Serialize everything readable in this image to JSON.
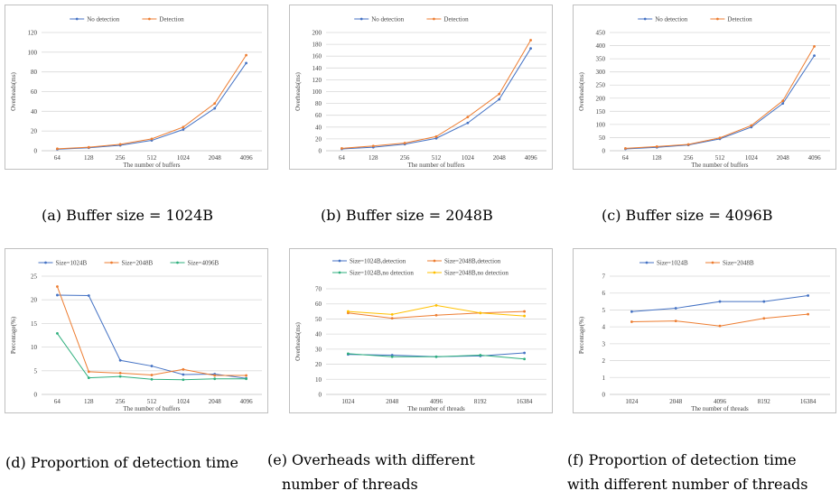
{
  "colors": {
    "blue": "#4472c4",
    "orange": "#ed7d31",
    "green": "#2eaf7d",
    "yellow": "#ffc000",
    "grid": "#d9d9d9",
    "axis": "#bfbfbf",
    "text": "#404040"
  },
  "captions": {
    "a": "(a)  Buffer size = 1024B",
    "b": "(b)  Buffer size = 2048B",
    "c": "(c)  Buffer size = 4096B",
    "d": "(d)  Proportion of detection time",
    "e_1": "(e)     Overheads   with   different",
    "e_2": "number of threads",
    "f_1": "(f)  Proportion of detection time",
    "f_2": "with different number of threads"
  },
  "chart_data": [
    {
      "id": "a",
      "type": "line",
      "title": "",
      "xlabel": "The number of buffers",
      "ylabel": "Overheads(ms)",
      "categories": [
        "64",
        "128",
        "256",
        "512",
        "1024",
        "2048",
        "4096"
      ],
      "ylim": [
        0,
        120
      ],
      "yticks": [
        0,
        20,
        40,
        60,
        80,
        100,
        120
      ],
      "grid": true,
      "legend": "top",
      "series": [
        {
          "name": "No detection",
          "color": "blue",
          "values": [
            1.5,
            3,
            5.5,
            10.5,
            21.5,
            43,
            89
          ]
        },
        {
          "name": "Detection",
          "color": "orange",
          "values": [
            2,
            3.5,
            6.5,
            12,
            24,
            48,
            97
          ]
        }
      ]
    },
    {
      "id": "b",
      "type": "line",
      "title": "",
      "xlabel": "The number of buffers",
      "ylabel": "Overheads(ms)",
      "categories": [
        "64",
        "128",
        "256",
        "512",
        "1024",
        "2048",
        "4096"
      ],
      "ylim": [
        0,
        200
      ],
      "yticks": [
        0,
        20,
        40,
        60,
        80,
        100,
        120,
        140,
        160,
        180,
        200
      ],
      "grid": true,
      "legend": "top",
      "series": [
        {
          "name": "No detection",
          "color": "blue",
          "values": [
            3,
            6,
            11,
            21,
            47,
            87,
            173
          ]
        },
        {
          "name": "Detection",
          "color": "orange",
          "values": [
            4,
            8,
            13,
            24,
            57,
            96,
            187
          ]
        }
      ]
    },
    {
      "id": "c",
      "type": "line",
      "title": "",
      "xlabel": "The number of buffers",
      "ylabel": "Overheads(ms)",
      "categories": [
        "64",
        "128",
        "256",
        "512",
        "1024",
        "2048",
        "4096"
      ],
      "ylim": [
        0,
        450
      ],
      "yticks": [
        0,
        50,
        100,
        150,
        200,
        250,
        300,
        350,
        400,
        450
      ],
      "grid": true,
      "legend": "top",
      "series": [
        {
          "name": "No detection",
          "color": "blue",
          "values": [
            7,
            13,
            22,
            45,
            90,
            180,
            362
          ]
        },
        {
          "name": "Detection",
          "color": "orange",
          "values": [
            9,
            16,
            24,
            49,
            96,
            190,
            397
          ]
        }
      ]
    },
    {
      "id": "d",
      "type": "line",
      "title": "",
      "xlabel": "The number of buffers",
      "ylabel": "Percentage(%)",
      "categories": [
        "64",
        "128",
        "256",
        "512",
        "1024",
        "2048",
        "4096"
      ],
      "ylim": [
        0,
        25
      ],
      "yticks": [
        0,
        5,
        10,
        15,
        20,
        25
      ],
      "grid": true,
      "legend": "top",
      "series": [
        {
          "name": "Size=1024B",
          "color": "blue",
          "values": [
            21,
            20.9,
            7.2,
            6,
            4.2,
            4.3,
            3.4
          ]
        },
        {
          "name": "Size=2048B",
          "color": "orange",
          "values": [
            22.8,
            4.8,
            4.5,
            4.1,
            5.3,
            4,
            4
          ]
        },
        {
          "name": "Size=4096B",
          "color": "green",
          "values": [
            12.9,
            3.5,
            3.8,
            3.2,
            3.1,
            3.3,
            3.3
          ]
        }
      ]
    },
    {
      "id": "e",
      "type": "line",
      "title": "",
      "xlabel": "The number of threads",
      "ylabel": "Overheads(ms)",
      "categories": [
        "1024",
        "2048",
        "4096",
        "8192",
        "16384"
      ],
      "ylim": [
        0,
        70
      ],
      "yticks": [
        0,
        10,
        20,
        30,
        40,
        50,
        60,
        70
      ],
      "grid": true,
      "legend": "top",
      "series": [
        {
          "name": "Size=1024B,detection",
          "color": "blue",
          "values": [
            26.5,
            26,
            25,
            25.5,
            27.5
          ]
        },
        {
          "name": "Size=2048B,detection",
          "color": "orange",
          "values": [
            54,
            50.5,
            52.5,
            54,
            55
          ]
        },
        {
          "name": "Size=1024B,no detection",
          "color": "green",
          "values": [
            27,
            25,
            25,
            26,
            23.5
          ]
        },
        {
          "name": "Size=2048B,no detection",
          "color": "yellow",
          "values": [
            55,
            53,
            59,
            54,
            52
          ]
        }
      ]
    },
    {
      "id": "f",
      "type": "line",
      "title": "",
      "xlabel": "The number of threads",
      "ylabel": "Percentage(%)",
      "categories": [
        "1024",
        "2048",
        "4096",
        "8192",
        "16384"
      ],
      "ylim": [
        0,
        7
      ],
      "yticks": [
        0,
        1,
        2,
        3,
        4,
        5,
        6,
        7
      ],
      "grid": true,
      "legend": "top",
      "series": [
        {
          "name": "Size=1024B",
          "color": "blue",
          "values": [
            4.9,
            5.1,
            5.5,
            5.5,
            5.85
          ]
        },
        {
          "name": "Size=2048B",
          "color": "orange",
          "values": [
            4.3,
            4.35,
            4.05,
            4.5,
            4.75
          ]
        }
      ]
    }
  ]
}
